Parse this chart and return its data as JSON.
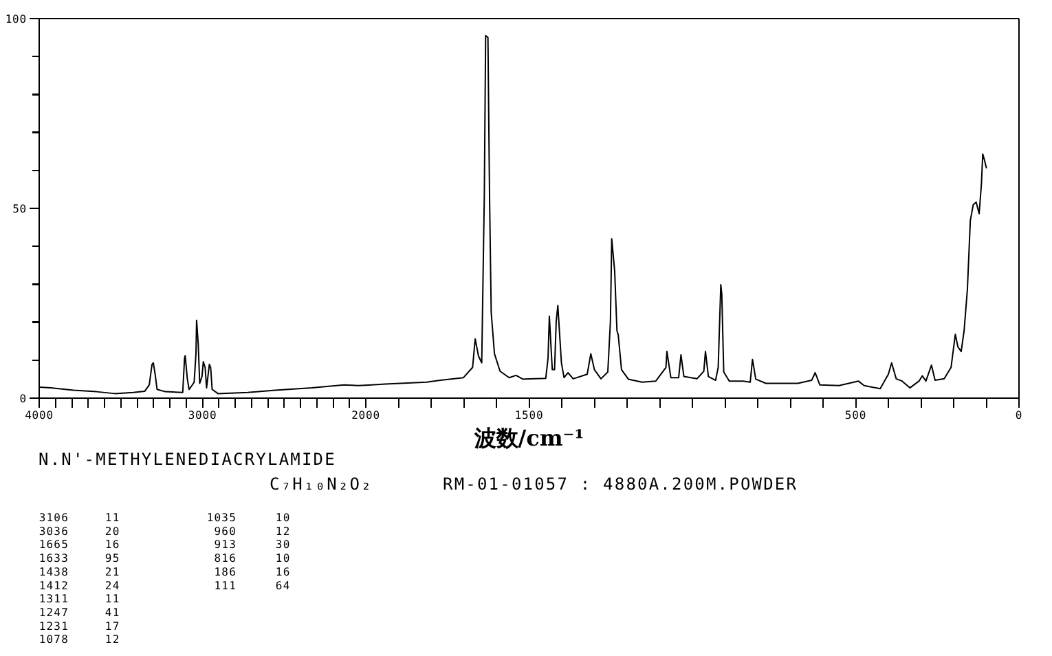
{
  "chart_data": [
    {
      "type": "line",
      "title": "N.N'-METHYLENEDIACRYLAMIDE",
      "subtitle": "C₇H₁₀N₂O₂",
      "annotations": [
        "RM-01-01057 : 4880A.200M.POWDER",
        "3106 11",
        "3036 20",
        "1665 16",
        "1633 95",
        "1438 21",
        "1412 24",
        "1311 11",
        "1247 41",
        "1231 17",
        "1078 12",
        "1035 10",
        "960 12",
        "913 30",
        "816 10",
        "186 16",
        "111 64"
      ],
      "x": [
        4000,
        3930,
        3789,
        3649,
        3537,
        3424,
        3354,
        3326,
        3309,
        3301,
        3290,
        3278,
        3228,
        3121,
        3110,
        3106,
        3093,
        3082,
        3065,
        3051,
        3040,
        3036,
        3026,
        3017,
        3003,
        2995,
        2984,
        2975,
        2958,
        2950,
        2941,
        2905,
        2723,
        2555,
        2330,
        2133,
        2049,
        2000
      ],
      "series": [
        {
          "color": "#000000",
          "values": [
            2.9,
            2.7,
            2.1,
            1.7,
            1.2,
            1.5,
            1.8,
            3.5,
            8.9,
            9.3,
            6.3,
            2.3,
            1.7,
            1.5,
            10.5,
            11.2,
            5.1,
            2.3,
            3.3,
            4.2,
            11.7,
            20.5,
            14.1,
            3.9,
            5.7,
            9.6,
            8.1,
            2.7,
            8.9,
            8.1,
            2.3,
            1.2,
            1.5,
            2.1,
            2.7,
            3.5,
            3.3,
            3.4
          ]
        }
      ],
      "xlim": [
        4000,
        2000
      ],
      "ylim": [
        0,
        100
      ],
      "xticks": [
        4000,
        {
          "value": 3900,
          "label": null
        },
        {
          "value": 3800,
          "label": null
        },
        {
          "value": 3700,
          "label": null
        },
        {
          "value": 3600,
          "label": null
        },
        {
          "value": 3500,
          "label": null
        },
        {
          "value": 3400,
          "label": null
        },
        {
          "value": 3300,
          "label": null
        },
        {
          "value": 3200,
          "label": null
        },
        {
          "value": 3100,
          "label": null
        },
        3000,
        {
          "value": 2900,
          "label": null
        },
        {
          "value": 2800,
          "label": null
        },
        {
          "value": 2700,
          "label": null
        },
        {
          "value": 2600,
          "label": null
        },
        {
          "value": 2500,
          "label": null
        },
        {
          "value": 2400,
          "label": null
        },
        {
          "value": 2300,
          "label": null
        },
        {
          "value": 2200,
          "label": null
        },
        {
          "value": 2100,
          "label": null
        },
        2000
      ],
      "yticks": [
        0,
        {
          "value": 10,
          "label": null
        },
        {
          "value": 20,
          "label": null
        },
        {
          "value": 30,
          "label": null
        },
        {
          "value": 40,
          "label": null
        },
        50,
        {
          "value": 60,
          "label": null
        },
        {
          "value": 70,
          "label": null
        },
        {
          "value": 80,
          "label": null
        },
        {
          "value": 90,
          "label": null
        },
        100
      ]
    },
    {
      "type": "line",
      "xlabel": "波数/cm⁻¹",
      "x": [
        2000,
        1940,
        1814,
        1772,
        1701,
        1673,
        1665,
        1655,
        1645,
        1637,
        1633,
        1626,
        1621,
        1616,
        1606,
        1589,
        1561,
        1540,
        1519,
        1449,
        1442,
        1438,
        1429,
        1422,
        1417,
        1412,
        1401,
        1393,
        1381,
        1365,
        1322,
        1311,
        1300,
        1280,
        1259,
        1251,
        1247,
        1238,
        1231,
        1227,
        1217,
        1196,
        1154,
        1112,
        1081,
        1078,
        1066,
        1042,
        1035,
        1026,
        986,
        965,
        960,
        951,
        929,
        921,
        913,
        910,
        904,
        887,
        845,
        823,
        816,
        806,
        775,
        677,
        635,
        624,
        610,
        551,
        492,
        474,
        425,
        400,
        390,
        376,
        358,
        334,
        306,
        296,
        285,
        268,
        257,
        229,
        208,
        195,
        187,
        177,
        168,
        158,
        149,
        140,
        131,
        122,
        115,
        111,
        105,
        100
      ],
      "series": [
        {
          "color": "#000000",
          "values": [
            3.4,
            3.7,
            4.2,
            4.7,
            5.4,
            8.1,
            15.6,
            11.1,
            9.3,
            54,
            95.5,
            95,
            52.8,
            22.6,
            11.7,
            7.1,
            5.4,
            6.0,
            5.0,
            5.2,
            10.5,
            21.6,
            7.5,
            7.5,
            20.2,
            24.4,
            9.3,
            5.4,
            6.7,
            5.1,
            6.3,
            11.7,
            7.5,
            5.1,
            6.9,
            20.2,
            42,
            33.5,
            17.8,
            16.6,
            7.5,
            5.0,
            4.2,
            4.5,
            8.1,
            12.3,
            5.4,
            5.4,
            11.4,
            5.7,
            5.1,
            7.1,
            12.3,
            5.7,
            4.7,
            8.1,
            29.9,
            27.4,
            6.9,
            4.5,
            4.5,
            4.2,
            10.2,
            5.0,
            3.9,
            3.9,
            4.7,
            6.7,
            3.5,
            3.3,
            4.5,
            3.3,
            2.5,
            6.3,
            9.3,
            5.1,
            4.5,
            2.7,
            4.5,
            5.9,
            4.5,
            8.7,
            4.7,
            5.1,
            8.1,
            16.8,
            13.5,
            12.3,
            17.8,
            28.7,
            46.8,
            51.0,
            51.6,
            48.6,
            56.5,
            64.3,
            62.5,
            60.7
          ]
        }
      ],
      "xlim": [
        2000,
        0
      ],
      "ylim": [
        0,
        100
      ],
      "tick_labels": "x",
      "xticks": [
        {
          "value": 1900,
          "label": null
        },
        {
          "value": 1800,
          "label": null
        },
        {
          "value": 1700,
          "label": null
        },
        {
          "value": 1600,
          "label": null
        },
        1500,
        {
          "value": 1400,
          "label": null
        },
        {
          "value": 1300,
          "label": null
        },
        {
          "value": 1200,
          "label": null
        },
        {
          "value": 1100,
          "label": null
        },
        {
          "value": 1000,
          "label": null
        },
        {
          "value": 900,
          "label": null
        },
        {
          "value": 800,
          "label": null
        },
        {
          "value": 700,
          "label": null
        },
        {
          "value": 600,
          "label": null
        },
        500,
        {
          "value": 400,
          "label": null
        },
        {
          "value": 300,
          "label": null
        },
        {
          "value": 200,
          "label": null
        },
        {
          "value": 100,
          "label": null
        },
        0
      ]
    }
  ]
}
